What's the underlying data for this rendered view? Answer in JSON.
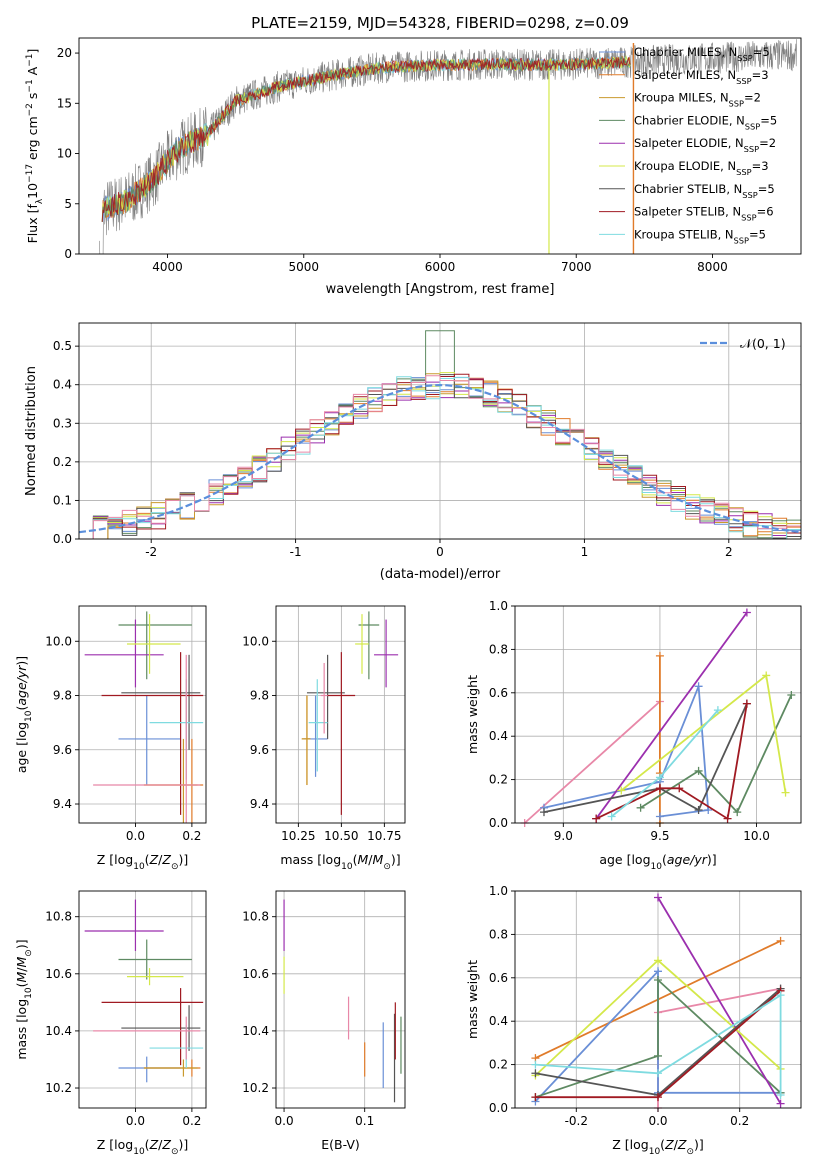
{
  "figure": {
    "title": "PLATE=2159, MJD=54328, FIBERID=0298, z=0.09"
  },
  "colors": {
    "Chabrier MILES": "#6a8fd6",
    "Salpeter MILES": "#e07b2a",
    "Kroupa MILES": "#c99a2e",
    "Chabrier ELODIE": "#5e8a62",
    "Salpeter ELODIE": "#9b2fae",
    "Kroupa ELODIE": "#d4e84a",
    "Chabrier STELIB": "#555555",
    "Salpeter STELIB": "#a01a22",
    "Kroupa STELIB": "#7fdbe0",
    "pink": "#e888a8",
    "data": "#808080",
    "normal": "#5b8fdc"
  },
  "chart_data": [
    {
      "type": "line",
      "title": "PLATE=2159, MJD=54328, FIBERID=0298, z=0.09",
      "xlabel": "wavelength [Angstrom, rest frame]",
      "ylabel": "Flux [f_λ10^-17 erg cm^-2 s^-1 A^-1]",
      "xlim": [
        3350,
        8650
      ],
      "ylim": [
        0,
        21.5
      ],
      "xticks": [
        4000,
        5000,
        6000,
        7000,
        8000
      ],
      "yticks": [
        0,
        5,
        10,
        15,
        20
      ],
      "grid": false,
      "legend_position": "right",
      "continuum": {
        "x": [
          3500,
          3700,
          3900,
          4000,
          4100,
          4300,
          4500,
          4800,
          5000,
          5300,
          5600,
          6000,
          6400,
          6800,
          7200,
          7500,
          8000,
          8600
        ],
        "y": [
          4.3,
          5.3,
          7.5,
          9.3,
          10.6,
          12.0,
          15.2,
          16.6,
          17.2,
          18.0,
          18.6,
          18.8,
          18.9,
          18.8,
          19.0,
          19.2,
          19.5,
          19.8
        ]
      },
      "series": [
        {
          "label": "Chabrier MILES, N",
          "sub": "SSP",
          "val": "=5"
        },
        {
          "label": "Salpeter MILES, N",
          "sub": "SSP",
          "val": "=3"
        },
        {
          "label": "Kroupa MILES, N",
          "sub": "SSP",
          "val": "=2"
        },
        {
          "label": "Chabrier ELODIE, N",
          "sub": "SSP",
          "val": "=5"
        },
        {
          "label": "Salpeter ELODIE, N",
          "sub": "SSP",
          "val": "=2"
        },
        {
          "label": "Kroupa ELODIE, N",
          "sub": "SSP",
          "val": "=3"
        },
        {
          "label": "Chabrier STELIB, N",
          "sub": "SSP",
          "val": "=5"
        },
        {
          "label": "Salpeter STELIB, N",
          "sub": "SSP",
          "val": "=6"
        },
        {
          "label": "Kroupa STELIB, N",
          "sub": "SSP",
          "val": "=5"
        }
      ]
    },
    {
      "type": "area",
      "xlabel": "(data-model)/error",
      "ylabel": "Normed distribution",
      "xlim": [
        -2.5,
        2.5
      ],
      "ylim": [
        0,
        0.56
      ],
      "xticks": [
        -2,
        -1,
        0,
        1,
        2
      ],
      "yticks": [
        0.0,
        0.1,
        0.2,
        0.3,
        0.4,
        0.5
      ],
      "grid": true,
      "legend": "𝒩(0, 1)",
      "legend_position": "top-right"
    },
    {
      "type": "scatter",
      "xlabel": "Z [log10(Z/Z⊙)]",
      "ylabel": "age [log10(age/yr)]",
      "xlim": [
        -0.2,
        0.25
      ],
      "ylim": [
        9.33,
        10.13
      ],
      "xticks": [
        0.0,
        0.2
      ],
      "yticks": [
        9.4,
        9.6,
        9.8,
        10.0
      ],
      "points": [
        {
          "c": "Chabrier MILES",
          "x": 0.04,
          "y": 9.64,
          "xe": [
            -0.06,
            0.16
          ],
          "ye": [
            9.47,
            9.8
          ]
        },
        {
          "c": "Salpeter MILES",
          "x": 0.2,
          "y": 9.47,
          "xe": [
            0.03,
            0.24
          ],
          "ye": [
            9.3,
            9.64
          ]
        },
        {
          "c": "Kroupa MILES",
          "x": 0.17,
          "y": 9.47,
          "xe": [
            0.03,
            0.22
          ],
          "ye": [
            9.3,
            9.64
          ]
        },
        {
          "c": "Chabrier ELODIE",
          "x": 0.04,
          "y": 10.06,
          "xe": [
            -0.06,
            0.2
          ],
          "ye": [
            9.86,
            10.11
          ]
        },
        {
          "c": "Salpeter ELODIE",
          "x": 0.0,
          "y": 9.95,
          "xe": [
            -0.18,
            0.1
          ],
          "ye": [
            9.83,
            10.08
          ]
        },
        {
          "c": "Kroupa ELODIE",
          "x": 0.05,
          "y": 9.99,
          "xe": [
            -0.03,
            0.16
          ],
          "ye": [
            9.88,
            10.1
          ]
        },
        {
          "c": "Chabrier STELIB",
          "x": 0.19,
          "y": 9.81,
          "xe": [
            -0.05,
            0.23
          ],
          "ye": [
            9.6,
            9.95
          ]
        },
        {
          "c": "Salpeter STELIB",
          "x": 0.16,
          "y": 9.8,
          "xe": [
            -0.12,
            0.24
          ],
          "ye": [
            9.36,
            9.96
          ]
        },
        {
          "c": "Kroupa STELIB",
          "x": 0.18,
          "y": 9.7,
          "xe": [
            0.05,
            0.24
          ],
          "ye": [
            9.49,
            9.86
          ]
        },
        {
          "c": "pink",
          "x": 0.18,
          "y": 9.47,
          "xe": [
            -0.15,
            0.23
          ],
          "ye": [
            9.3,
            9.95
          ]
        }
      ]
    },
    {
      "type": "scatter",
      "xlabel": "mass [log10(M/M⊙)]",
      "ylabel": "",
      "xlim": [
        10.12,
        10.87
      ],
      "ylim": [
        9.33,
        10.13
      ],
      "xticks": [
        10.25,
        10.5,
        10.75
      ],
      "yticks": [
        9.4,
        9.6,
        9.8,
        10.0
      ],
      "points": [
        {
          "c": "Chabrier MILES",
          "x": 10.35,
          "y": 9.64,
          "xe": [
            10.28,
            10.42
          ],
          "ye": [
            9.5,
            9.8
          ]
        },
        {
          "c": "Salpeter MILES",
          "x": 10.3,
          "y": 9.64,
          "xe": [
            10.27,
            10.32
          ],
          "ye": [
            9.47,
            9.8
          ]
        },
        {
          "c": "Kroupa MILES",
          "x": 10.3,
          "y": 9.64,
          "xe": [
            10.27,
            10.32
          ],
          "ye": [
            9.47,
            9.8
          ]
        },
        {
          "c": "Chabrier ELODIE",
          "x": 10.66,
          "y": 10.06,
          "xe": [
            10.6,
            10.72
          ],
          "ye": [
            9.86,
            10.11
          ]
        },
        {
          "c": "Salpeter ELODIE",
          "x": 10.76,
          "y": 9.95,
          "xe": [
            10.69,
            10.83
          ],
          "ye": [
            9.83,
            10.08
          ]
        },
        {
          "c": "Kroupa ELODIE",
          "x": 10.62,
          "y": 9.99,
          "xe": [
            10.58,
            10.66
          ],
          "ye": [
            9.88,
            10.1
          ]
        },
        {
          "c": "Chabrier STELIB",
          "x": 10.42,
          "y": 9.81,
          "xe": [
            10.3,
            10.52
          ],
          "ye": [
            9.64,
            9.95
          ]
        },
        {
          "c": "Salpeter STELIB",
          "x": 10.5,
          "y": 9.8,
          "xe": [
            10.42,
            10.58
          ],
          "ye": [
            9.36,
            9.96
          ]
        },
        {
          "c": "Kroupa STELIB",
          "x": 10.36,
          "y": 9.7,
          "xe": [
            10.31,
            10.42
          ],
          "ye": [
            9.52,
            9.86
          ]
        },
        {
          "c": "pink",
          "x": 10.4,
          "y": 9.8,
          "xe": [
            10.38,
            10.42
          ],
          "ye": [
            9.66,
            9.92
          ]
        }
      ]
    },
    {
      "type": "line",
      "xlabel": "age [log10(age/yr)]",
      "ylabel": "mass weight",
      "xlim": [
        8.75,
        10.23
      ],
      "ylim": [
        0,
        1
      ],
      "xticks": [
        9.0,
        9.5,
        10.0
      ],
      "yticks": [
        0.0,
        0.2,
        0.4,
        0.6,
        0.8,
        1.0
      ],
      "series": [
        {
          "c": "pink",
          "x": [
            8.8,
            9.5
          ],
          "y": [
            0.0,
            0.56
          ]
        },
        {
          "c": "Salpeter MILES",
          "x": [
            9.5,
            9.5,
            9.5
          ],
          "y": [
            0.0,
            0.77,
            0.23
          ]
        },
        {
          "c": "Chabrier MILES",
          "x": [
            8.9,
            9.5,
            9.7,
            9.75,
            9.5
          ],
          "y": [
            0.07,
            0.19,
            0.63,
            0.06,
            0.03
          ]
        },
        {
          "c": "Chabrier ELODIE",
          "x": [
            9.4,
            9.7,
            9.9,
            10.18
          ],
          "y": [
            0.07,
            0.24,
            0.05,
            0.59
          ]
        },
        {
          "c": "Salpeter ELODIE",
          "x": [
            9.17,
            9.95
          ],
          "y": [
            0.02,
            0.97
          ]
        },
        {
          "c": "Kroupa ELODIE",
          "x": [
            9.3,
            10.05,
            10.15
          ],
          "y": [
            0.15,
            0.68,
            0.14
          ]
        },
        {
          "c": "Chabrier STELIB",
          "x": [
            8.9,
            9.5,
            9.7,
            9.95
          ],
          "y": [
            0.05,
            0.16,
            0.06,
            0.55
          ]
        },
        {
          "c": "Salpeter STELIB",
          "x": [
            9.17,
            9.5,
            9.6,
            9.85,
            9.95
          ],
          "y": [
            0.02,
            0.16,
            0.16,
            0.02,
            0.55
          ]
        },
        {
          "c": "Kroupa STELIB",
          "x": [
            9.25,
            9.5,
            9.8
          ],
          "y": [
            0.03,
            0.21,
            0.52
          ]
        }
      ]
    },
    {
      "type": "scatter",
      "xlabel": "Z [log10(Z/Z⊙)]",
      "ylabel": "mass [log10(M/M⊙)]",
      "xlim": [
        -0.2,
        0.25
      ],
      "ylim": [
        10.13,
        10.89
      ],
      "xticks": [
        0.0,
        0.2
      ],
      "yticks": [
        10.2,
        10.4,
        10.6,
        10.8
      ],
      "points": [
        {
          "c": "Chabrier MILES",
          "x": 0.04,
          "y": 10.27,
          "xe": [
            -0.06,
            0.16
          ],
          "ye": [
            10.22,
            10.31
          ]
        },
        {
          "c": "Salpeter MILES",
          "x": 0.2,
          "y": 10.27,
          "xe": [
            0.03,
            0.23
          ],
          "ye": [
            10.24,
            10.3
          ]
        },
        {
          "c": "Kroupa MILES",
          "x": 0.17,
          "y": 10.27,
          "xe": [
            0.03,
            0.22
          ],
          "ye": [
            10.24,
            10.3
          ]
        },
        {
          "c": "Chabrier ELODIE",
          "x": 0.04,
          "y": 10.65,
          "xe": [
            -0.06,
            0.2
          ],
          "ye": [
            10.58,
            10.72
          ]
        },
        {
          "c": "Salpeter ELODIE",
          "x": 0.0,
          "y": 10.75,
          "xe": [
            -0.18,
            0.1
          ],
          "ye": [
            10.68,
            10.86
          ]
        },
        {
          "c": "Kroupa ELODIE",
          "x": 0.05,
          "y": 10.59,
          "xe": [
            -0.03,
            0.17
          ],
          "ye": [
            10.56,
            10.62
          ]
        },
        {
          "c": "Chabrier STELIB",
          "x": 0.19,
          "y": 10.41,
          "xe": [
            -0.05,
            0.23
          ],
          "ye": [
            10.33,
            10.49
          ]
        },
        {
          "c": "Salpeter STELIB",
          "x": 0.16,
          "y": 10.5,
          "xe": [
            -0.12,
            0.24
          ],
          "ye": [
            10.28,
            10.55
          ]
        },
        {
          "c": "Kroupa STELIB",
          "x": 0.18,
          "y": 10.34,
          "xe": [
            0.05,
            0.24
          ],
          "ye": [
            10.27,
            10.42
          ]
        },
        {
          "c": "pink",
          "x": 0.18,
          "y": 10.4,
          "xe": [
            -0.15,
            0.23
          ],
          "ye": [
            10.3,
            10.45
          ]
        }
      ]
    },
    {
      "type": "scatter",
      "xlabel": "E(B-V)",
      "ylabel": "",
      "xlim": [
        -0.01,
        0.15
      ],
      "ylim": [
        10.13,
        10.89
      ],
      "xticks": [
        0.0,
        0.1
      ],
      "yticks": [
        10.2,
        10.4,
        10.6,
        10.8
      ],
      "points": [
        {
          "c": "Salpeter ELODIE",
          "x": 0.0,
          "y": 10.75,
          "ye": [
            10.68,
            10.86
          ]
        },
        {
          "c": "Kroupa ELODIE",
          "x": 0.0,
          "y": 10.59,
          "ye": [
            10.53,
            10.66
          ]
        },
        {
          "c": "pink",
          "x": 0.08,
          "y": 10.44,
          "ye": [
            10.37,
            10.52
          ]
        },
        {
          "c": "Salpeter MILES",
          "x": 0.1,
          "y": 10.3,
          "ye": [
            10.24,
            10.36
          ]
        },
        {
          "c": "Chabrier MILES",
          "x": 0.123,
          "y": 10.32,
          "ye": [
            10.2,
            10.43
          ]
        },
        {
          "c": "Chabrier STELIB",
          "x": 0.137,
          "y": 10.3,
          "ye": [
            10.15,
            10.46
          ]
        },
        {
          "c": "Salpeter STELIB",
          "x": 0.138,
          "y": 10.4,
          "ye": [
            10.3,
            10.5
          ]
        },
        {
          "c": "Chabrier ELODIE",
          "x": 0.145,
          "y": 10.33,
          "ye": [
            10.25,
            10.45
          ]
        }
      ]
    },
    {
      "type": "line",
      "xlabel": "Z [log10(Z/Z⊙)]",
      "ylabel": "mass weight",
      "xlim": [
        -0.35,
        0.35
      ],
      "ylim": [
        0,
        1
      ],
      "xticks": [
        -0.2,
        0.0,
        0.2
      ],
      "yticks": [
        0.0,
        0.2,
        0.4,
        0.6,
        0.8,
        1.0
      ],
      "series": [
        {
          "c": "Salpeter MILES",
          "x": [
            -0.3,
            0.3
          ],
          "y": [
            0.23,
            0.77
          ]
        },
        {
          "c": "pink",
          "x": [
            0.0,
            0.0,
            0.3
          ],
          "y": [
            0.0,
            0.44,
            0.55
          ]
        },
        {
          "c": "Chabrier MILES",
          "x": [
            -0.3,
            0.0,
            0.0,
            0.3
          ],
          "y": [
            0.03,
            0.63,
            0.07,
            0.07
          ]
        },
        {
          "c": "Chabrier ELODIE",
          "x": [
            -0.3,
            0.0,
            0.0,
            0.3
          ],
          "y": [
            0.05,
            0.24,
            0.59,
            0.07
          ]
        },
        {
          "c": "Salpeter ELODIE",
          "x": [
            0.0,
            0.3
          ],
          "y": [
            0.97,
            0.02
          ]
        },
        {
          "c": "Kroupa ELODIE",
          "x": [
            -0.3,
            0.0,
            0.3
          ],
          "y": [
            0.15,
            0.68,
            0.18
          ]
        },
        {
          "c": "Chabrier STELIB",
          "x": [
            -0.3,
            0.0,
            0.3
          ],
          "y": [
            0.16,
            0.06,
            0.55
          ]
        },
        {
          "c": "Salpeter STELIB",
          "x": [
            -0.3,
            0.0,
            0.3
          ],
          "y": [
            0.05,
            0.05,
            0.54
          ]
        },
        {
          "c": "Kroupa STELIB",
          "x": [
            -0.3,
            0.0,
            0.3,
            0.3
          ],
          "y": [
            0.2,
            0.16,
            0.52,
            0.06
          ]
        }
      ]
    }
  ]
}
